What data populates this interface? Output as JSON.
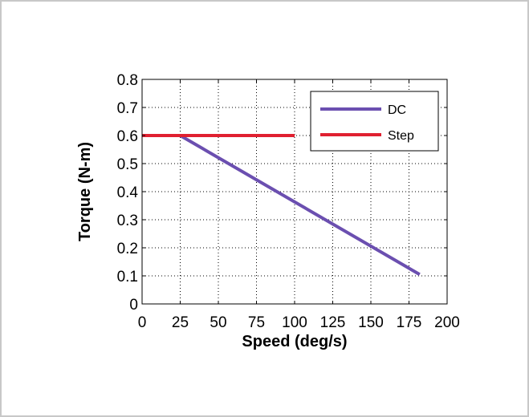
{
  "chart_data": {
    "type": "line",
    "title": "",
    "xlabel": "Speed (deg/s)",
    "ylabel": "Torque (N-m)",
    "xlim": [
      0,
      200
    ],
    "ylim": [
      0,
      0.8
    ],
    "xticks": [
      0,
      25,
      50,
      75,
      100,
      125,
      150,
      175,
      200
    ],
    "xtick_labels": [
      "0",
      "25",
      "50",
      "75",
      "100",
      "125",
      "150",
      "175",
      "200"
    ],
    "yticks": [
      0,
      0.1,
      0.2,
      0.3,
      0.4,
      0.5,
      0.6,
      0.7,
      0.8
    ],
    "ytick_labels": [
      "0",
      "0.1",
      "0.2",
      "0.3",
      "0.4",
      "0.5",
      "0.6",
      "0.7",
      "0.8"
    ],
    "grid": true,
    "legend_position": "top-right",
    "series": [
      {
        "name": "DC",
        "color": "#6b4fb0",
        "x": [
          0,
          25,
          182
        ],
        "y": [
          0.6,
          0.6,
          0.105
        ]
      },
      {
        "name": "Step",
        "color": "#e02030",
        "x": [
          0,
          100
        ],
        "y": [
          0.6,
          0.6
        ]
      }
    ]
  }
}
